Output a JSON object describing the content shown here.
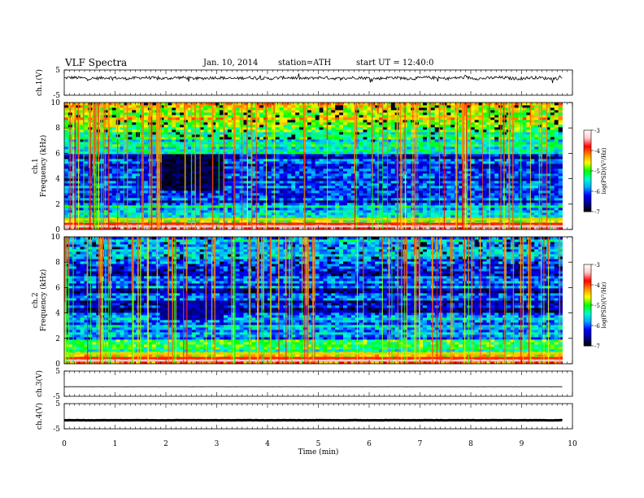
{
  "header": {
    "title": "VLF  Spectra",
    "date": "Jan. 10, 2014",
    "station": "station=ATH",
    "start": "start  UT =   12:40:0"
  },
  "colors": {
    "colormap": [
      "#000000",
      "#00008c",
      "#0000ff",
      "#00aaff",
      "#00ffcc",
      "#00ff00",
      "#ffff00",
      "#ff8c00",
      "#ff0000",
      "#ffc8c8",
      "#ffffff"
    ],
    "trace": "#000000"
  },
  "chart_data": [
    {
      "type": "line",
      "panel": "ch1",
      "ylabel": "ch.1(V)",
      "yticks": [
        "5",
        "-5"
      ],
      "ylim": [
        -5,
        5
      ],
      "x_range": [
        0,
        9.8
      ],
      "baseline_value": 1.8,
      "noise_amplitude": 0.6
    },
    {
      "type": "heatmap",
      "panel": "spec1",
      "ylabel": "ch.1\nFrequency  (kHz)",
      "ylabel_lines": [
        "ch.1",
        "Frequency  (kHz)"
      ],
      "yticks": [
        "0",
        "2",
        "4",
        "6",
        "8",
        "10"
      ],
      "ylim": [
        0,
        10
      ],
      "x_range": [
        0,
        9.8
      ],
      "colorbar": {
        "label": "log(PSD)(V²/Hz)",
        "ticks": [
          "-3",
          "-4",
          "-5",
          "-6",
          "-7"
        ],
        "range": [
          -7,
          -3
        ]
      },
      "mean_psd_by_band": [
        {
          "f": [
            0.0,
            0.5
          ],
          "psd": -3.9
        },
        {
          "f": [
            0.5,
            1.0
          ],
          "psd": -5.0
        },
        {
          "f": [
            1.0,
            2.0
          ],
          "psd": -5.6
        },
        {
          "f": [
            2.0,
            4.0
          ],
          "psd": -6.1
        },
        {
          "f": [
            4.0,
            6.0
          ],
          "psd": -6.2
        },
        {
          "f": [
            6.0,
            8.0
          ],
          "psd": -5.3
        },
        {
          "f": [
            8.0,
            10.0
          ],
          "psd": -4.7
        }
      ],
      "quiet_region": {
        "t": [
          1.85,
          3.1
        ],
        "f": [
          3.0,
          6.0
        ],
        "psd": -6.8
      }
    },
    {
      "type": "heatmap",
      "panel": "spec2",
      "ylabel": "ch.2\nFrequency  (kHz)",
      "ylabel_lines": [
        "ch.2",
        "Frequency  (kHz)"
      ],
      "yticks": [
        "0",
        "2",
        "4",
        "6",
        "8",
        "10"
      ],
      "ylim": [
        0,
        10
      ],
      "x_range": [
        0,
        9.8
      ],
      "colorbar": {
        "label": "log(PSD)(V²/Hz)",
        "ticks": [
          "-3",
          "-4",
          "-5",
          "-6",
          "-7"
        ],
        "range": [
          -7,
          -3
        ]
      },
      "mean_psd_by_band": [
        {
          "f": [
            0.0,
            0.5
          ],
          "psd": -4.0
        },
        {
          "f": [
            0.5,
            1.0
          ],
          "psd": -4.6
        },
        {
          "f": [
            1.0,
            2.0
          ],
          "psd": -5.2
        },
        {
          "f": [
            2.0,
            4.0
          ],
          "psd": -5.8
        },
        {
          "f": [
            4.0,
            6.0
          ],
          "psd": -6.3
        },
        {
          "f": [
            6.0,
            8.0
          ],
          "psd": -6.0
        },
        {
          "f": [
            8.0,
            10.0
          ],
          "psd": -5.8
        }
      ],
      "quiet_region": {
        "t": [
          1.85,
          3.1
        ],
        "f": [
          3.5,
          5.0
        ],
        "psd": -6.5
      }
    },
    {
      "type": "line",
      "panel": "ch3",
      "ylabel": "ch.3(V)",
      "yticks": [
        "5",
        "-5"
      ],
      "ylim": [
        -5,
        5
      ],
      "x_range": [
        0,
        9.8
      ],
      "baseline_value": -1.2,
      "noise_amplitude": 0.02
    },
    {
      "type": "line",
      "panel": "ch4",
      "ylabel": "ch.4(V)",
      "yticks": [
        "5",
        "-5"
      ],
      "ylim": [
        -5,
        5
      ],
      "x_range": [
        0,
        9.8
      ],
      "baseline_value": -1.6,
      "noise_amplitude": 0.05
    }
  ],
  "x_axis": {
    "label": "Time  (min)",
    "ticks": [
      "0",
      "1",
      "2",
      "3",
      "4",
      "5",
      "6",
      "7",
      "8",
      "9",
      "10"
    ],
    "range": [
      0,
      10
    ]
  }
}
